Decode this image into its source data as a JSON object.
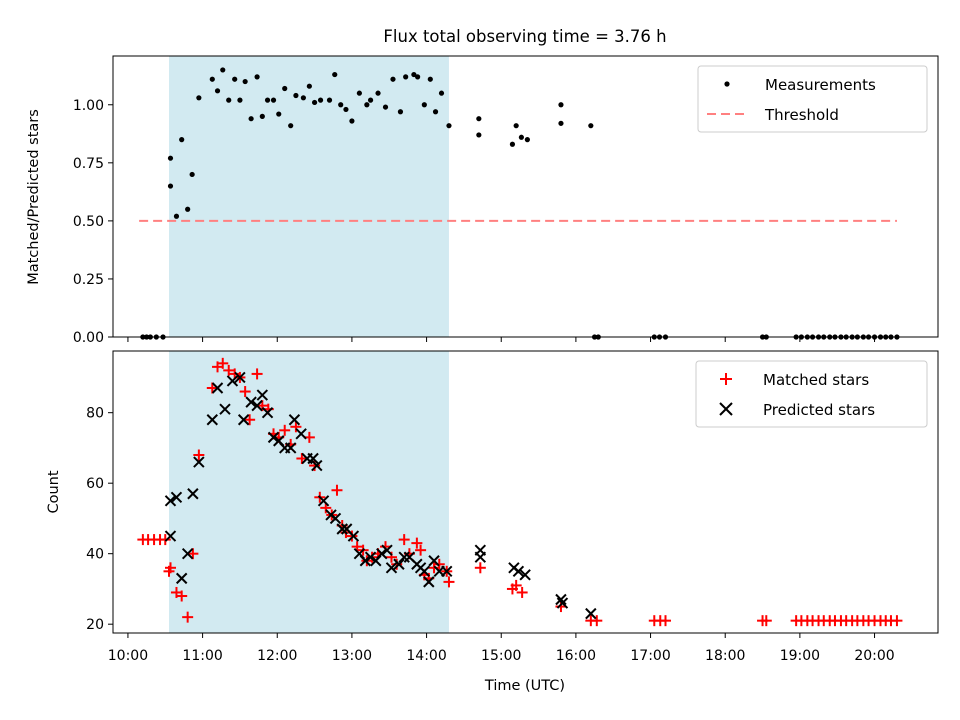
{
  "chart_data": [
    {
      "type": "scatter",
      "panel": "top",
      "title": "Flux total observing time = 3.76 h",
      "xlabel": "",
      "ylabel": "Matched/Predicted stars",
      "xlim": [
        9.8,
        20.85
      ],
      "ylim": [
        0.0,
        1.21
      ],
      "yticks": [
        0.0,
        0.25,
        0.5,
        0.75,
        1.0
      ],
      "ytick_labels": [
        "0.00",
        "0.25",
        "0.50",
        "0.75",
        "1.00"
      ],
      "shaded_interval": [
        10.55,
        14.3
      ],
      "legend": {
        "placement": "top-right",
        "entries": [
          "Measurements",
          "Threshold"
        ]
      },
      "threshold": {
        "name": "Threshold",
        "value": 0.5,
        "x_range": [
          10.15,
          20.3
        ],
        "color": "#ff8080"
      },
      "series": [
        {
          "name": "Measurements",
          "color": "#000000",
          "points": [
            [
              10.2,
              0
            ],
            [
              10.25,
              0
            ],
            [
              10.3,
              0
            ],
            [
              10.38,
              0
            ],
            [
              10.47,
              0
            ],
            [
              10.57,
              0.65
            ],
            [
              10.57,
              0.77
            ],
            [
              10.65,
              0.52
            ],
            [
              10.72,
              0.85
            ],
            [
              10.8,
              0.55
            ],
            [
              10.86,
              0.7
            ],
            [
              10.95,
              1.03
            ],
            [
              11.13,
              1.11
            ],
            [
              11.2,
              1.06
            ],
            [
              11.27,
              1.15
            ],
            [
              11.35,
              1.02
            ],
            [
              11.43,
              1.11
            ],
            [
              11.5,
              1.02
            ],
            [
              11.57,
              1.1
            ],
            [
              11.65,
              0.94
            ],
            [
              11.73,
              1.12
            ],
            [
              11.8,
              0.95
            ],
            [
              11.87,
              1.02
            ],
            [
              11.95,
              1.02
            ],
            [
              12.02,
              0.96
            ],
            [
              12.1,
              1.07
            ],
            [
              12.18,
              0.91
            ],
            [
              12.25,
              1.04
            ],
            [
              12.35,
              1.03
            ],
            [
              12.43,
              1.08
            ],
            [
              12.5,
              1.01
            ],
            [
              12.58,
              1.02
            ],
            [
              12.7,
              1.02
            ],
            [
              12.77,
              1.13
            ],
            [
              12.85,
              1.0
            ],
            [
              12.92,
              0.98
            ],
            [
              13.0,
              0.93
            ],
            [
              13.1,
              1.05
            ],
            [
              13.2,
              1.0
            ],
            [
              13.25,
              1.02
            ],
            [
              13.35,
              1.05
            ],
            [
              13.45,
              0.99
            ],
            [
              13.55,
              1.11
            ],
            [
              13.65,
              0.97
            ],
            [
              13.72,
              1.12
            ],
            [
              13.83,
              1.13
            ],
            [
              13.88,
              1.12
            ],
            [
              13.97,
              1.0
            ],
            [
              14.05,
              1.11
            ],
            [
              14.12,
              0.97
            ],
            [
              14.2,
              1.05
            ],
            [
              14.3,
              0.91
            ],
            [
              14.7,
              0.94
            ],
            [
              14.7,
              0.87
            ],
            [
              15.15,
              0.83
            ],
            [
              15.2,
              0.91
            ],
            [
              15.27,
              0.86
            ],
            [
              15.35,
              0.85
            ],
            [
              15.8,
              1.0
            ],
            [
              15.8,
              0.92
            ],
            [
              16.2,
              0.91
            ],
            [
              16.25,
              0
            ],
            [
              16.3,
              0
            ],
            [
              17.05,
              0
            ],
            [
              17.12,
              0
            ],
            [
              17.2,
              0
            ],
            [
              18.5,
              0
            ],
            [
              18.55,
              0
            ],
            [
              18.95,
              0
            ],
            [
              19.02,
              0
            ],
            [
              19.1,
              0
            ],
            [
              19.17,
              0
            ],
            [
              19.25,
              0
            ],
            [
              19.32,
              0
            ],
            [
              19.4,
              0
            ],
            [
              19.47,
              0
            ],
            [
              19.55,
              0
            ],
            [
              19.62,
              0
            ],
            [
              19.7,
              0
            ],
            [
              19.77,
              0
            ],
            [
              19.85,
              0
            ],
            [
              19.92,
              0
            ],
            [
              20.0,
              0
            ],
            [
              20.08,
              0
            ],
            [
              20.15,
              0
            ],
            [
              20.22,
              0
            ],
            [
              20.3,
              0
            ]
          ]
        }
      ]
    },
    {
      "type": "scatter",
      "panel": "bottom",
      "xlabel": "Time (UTC)",
      "ylabel": "Count",
      "xlim": [
        9.8,
        20.85
      ],
      "ylim": [
        17.5,
        97.5
      ],
      "yticks": [
        20,
        40,
        60,
        80
      ],
      "ytick_labels": [
        "20",
        "40",
        "60",
        "80"
      ],
      "xticks": [
        10,
        11,
        12,
        13,
        14,
        15,
        16,
        17,
        18,
        19,
        20
      ],
      "xtick_labels": [
        "10:00",
        "11:00",
        "12:00",
        "13:00",
        "14:00",
        "15:00",
        "16:00",
        "17:00",
        "18:00",
        "19:00",
        "20:00"
      ],
      "shaded_interval": [
        10.55,
        14.3
      ],
      "legend": {
        "placement": "top-right",
        "entries": [
          "Matched stars",
          "Predicted stars"
        ]
      },
      "series": [
        {
          "name": "Matched stars",
          "marker": "plus",
          "color": "#ff0000",
          "points": [
            [
              10.2,
              44
            ],
            [
              10.27,
              44
            ],
            [
              10.35,
              44
            ],
            [
              10.43,
              44
            ],
            [
              10.5,
              44
            ],
            [
              10.55,
              35
            ],
            [
              10.57,
              36
            ],
            [
              10.65,
              29
            ],
            [
              10.72,
              28
            ],
            [
              10.8,
              22
            ],
            [
              10.87,
              40
            ],
            [
              10.95,
              68
            ],
            [
              11.13,
              87
            ],
            [
              11.2,
              93
            ],
            [
              11.27,
              94
            ],
            [
              11.35,
              92
            ],
            [
              11.43,
              91
            ],
            [
              11.5,
              90
            ],
            [
              11.57,
              86
            ],
            [
              11.63,
              78
            ],
            [
              11.73,
              91
            ],
            [
              11.8,
              82
            ],
            [
              11.88,
              81
            ],
            [
              11.95,
              74
            ],
            [
              12.02,
              73
            ],
            [
              12.1,
              75
            ],
            [
              12.18,
              71
            ],
            [
              12.25,
              76
            ],
            [
              12.33,
              67
            ],
            [
              12.43,
              73
            ],
            [
              12.5,
              65
            ],
            [
              12.57,
              56
            ],
            [
              12.65,
              53
            ],
            [
              12.73,
              51
            ],
            [
              12.8,
              58
            ],
            [
              12.87,
              48
            ],
            [
              12.92,
              46
            ],
            [
              13.0,
              45
            ],
            [
              13.07,
              42
            ],
            [
              13.15,
              41
            ],
            [
              13.2,
              38
            ],
            [
              13.27,
              39
            ],
            [
              13.35,
              40
            ],
            [
              13.45,
              42
            ],
            [
              13.53,
              39
            ],
            [
              13.6,
              37
            ],
            [
              13.7,
              44
            ],
            [
              13.77,
              40
            ],
            [
              13.87,
              43
            ],
            [
              13.92,
              41
            ],
            [
              13.97,
              34
            ],
            [
              14.03,
              33
            ],
            [
              14.1,
              36
            ],
            [
              14.17,
              37
            ],
            [
              14.27,
              35
            ],
            [
              14.3,
              32
            ],
            [
              14.72,
              36
            ],
            [
              15.15,
              30
            ],
            [
              15.2,
              31
            ],
            [
              15.28,
              29
            ],
            [
              15.8,
              25
            ],
            [
              16.2,
              21
            ],
            [
              16.28,
              21
            ],
            [
              17.05,
              21
            ],
            [
              17.13,
              21
            ],
            [
              17.2,
              21
            ],
            [
              18.5,
              21
            ],
            [
              18.55,
              21
            ],
            [
              18.95,
              21
            ],
            [
              19.02,
              21
            ],
            [
              19.1,
              21
            ],
            [
              19.17,
              21
            ],
            [
              19.25,
              21
            ],
            [
              19.32,
              21
            ],
            [
              19.4,
              21
            ],
            [
              19.47,
              21
            ],
            [
              19.55,
              21
            ],
            [
              19.62,
              21
            ],
            [
              19.7,
              21
            ],
            [
              19.77,
              21
            ],
            [
              19.85,
              21
            ],
            [
              19.92,
              21
            ],
            [
              20.0,
              21
            ],
            [
              20.08,
              21
            ],
            [
              20.15,
              21
            ],
            [
              20.22,
              21
            ],
            [
              20.3,
              21
            ]
          ]
        },
        {
          "name": "Predicted stars",
          "marker": "x",
          "color": "#000000",
          "points": [
            [
              10.57,
              55
            ],
            [
              10.57,
              45
            ],
            [
              10.65,
              56
            ],
            [
              10.72,
              33
            ],
            [
              10.8,
              40
            ],
            [
              10.87,
              57
            ],
            [
              10.95,
              66
            ],
            [
              11.13,
              78
            ],
            [
              11.2,
              87
            ],
            [
              11.3,
              81
            ],
            [
              11.4,
              89
            ],
            [
              11.5,
              90
            ],
            [
              11.55,
              78
            ],
            [
              11.65,
              83
            ],
            [
              11.73,
              82
            ],
            [
              11.8,
              85
            ],
            [
              11.87,
              80
            ],
            [
              11.95,
              73
            ],
            [
              12.02,
              72
            ],
            [
              12.1,
              70
            ],
            [
              12.18,
              70
            ],
            [
              12.23,
              78
            ],
            [
              12.32,
              74
            ],
            [
              12.4,
              67
            ],
            [
              12.48,
              67
            ],
            [
              12.53,
              65
            ],
            [
              12.62,
              55
            ],
            [
              12.72,
              51
            ],
            [
              12.78,
              50
            ],
            [
              12.87,
              47
            ],
            [
              12.93,
              47
            ],
            [
              13.02,
              45
            ],
            [
              13.1,
              40
            ],
            [
              13.18,
              38
            ],
            [
              13.25,
              39
            ],
            [
              13.32,
              38
            ],
            [
              13.4,
              40
            ],
            [
              13.47,
              41
            ],
            [
              13.53,
              36
            ],
            [
              13.63,
              37
            ],
            [
              13.7,
              39
            ],
            [
              13.77,
              39
            ],
            [
              13.87,
              37
            ],
            [
              13.92,
              36
            ],
            [
              13.97,
              35
            ],
            [
              14.03,
              32
            ],
            [
              14.1,
              38
            ],
            [
              14.17,
              35
            ],
            [
              14.27,
              35
            ],
            [
              14.72,
              39
            ],
            [
              14.72,
              41
            ],
            [
              15.17,
              36
            ],
            [
              15.23,
              35
            ],
            [
              15.32,
              34
            ],
            [
              15.82,
              26
            ],
            [
              15.8,
              27
            ],
            [
              16.2,
              23
            ]
          ]
        }
      ]
    }
  ]
}
